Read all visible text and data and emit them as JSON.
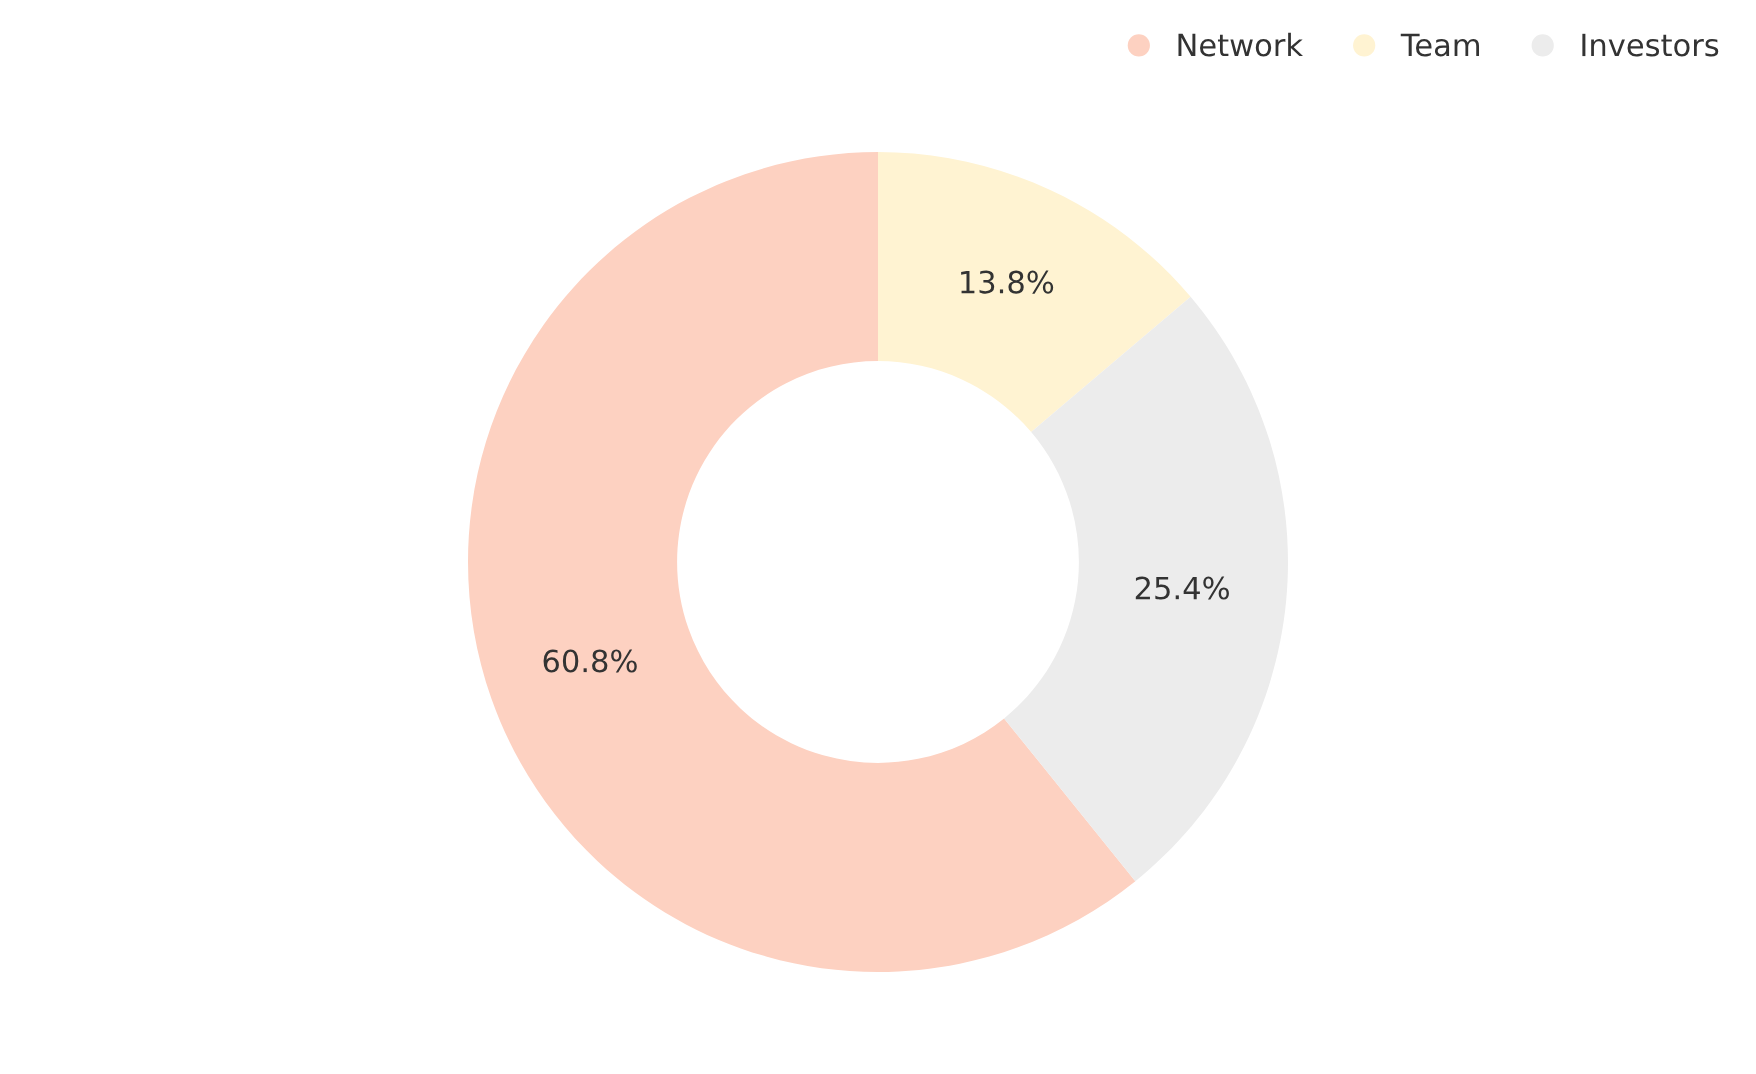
{
  "chart_data": {
    "type": "donut",
    "categories": [
      "Network",
      "Team",
      "Investors"
    ],
    "values": [
      60.8,
      13.8,
      25.4
    ],
    "colors": [
      "#fdd1c1",
      "#fff3d2",
      "#ececec"
    ],
    "value_labels": [
      "60.8%",
      "13.8%",
      "25.4%"
    ],
    "legend": "top right"
  }
}
